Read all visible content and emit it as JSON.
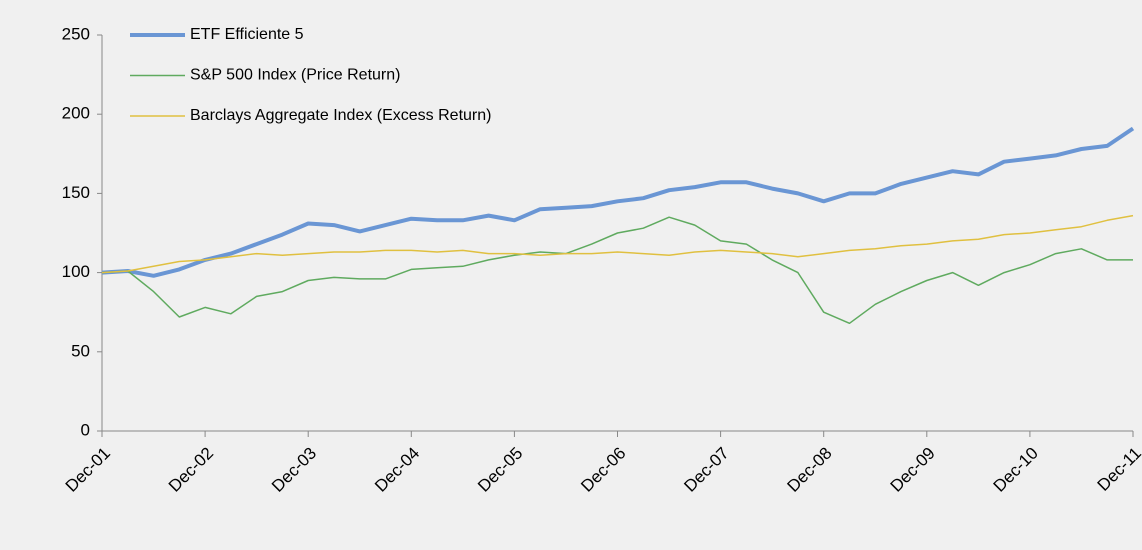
{
  "chart_data": {
    "type": "line",
    "x": [
      "Dec-01",
      "Mar-02",
      "Jun-02",
      "Sep-02",
      "Dec-02",
      "Mar-03",
      "Jun-03",
      "Sep-03",
      "Dec-03",
      "Mar-04",
      "Jun-04",
      "Sep-04",
      "Dec-04",
      "Mar-05",
      "Jun-05",
      "Sep-05",
      "Dec-05",
      "Mar-06",
      "Jun-06",
      "Sep-06",
      "Dec-06",
      "Mar-07",
      "Jun-07",
      "Sep-07",
      "Dec-07",
      "Mar-08",
      "Jun-08",
      "Sep-08",
      "Dec-08",
      "Mar-09",
      "Jun-09",
      "Sep-09",
      "Dec-09",
      "Mar-10",
      "Jun-10",
      "Sep-10",
      "Dec-10",
      "Mar-11",
      "Jun-11",
      "Sep-11",
      "Dec-11"
    ],
    "xticks": [
      "Dec-01",
      "Dec-02",
      "Dec-03",
      "Dec-04",
      "Dec-05",
      "Dec-06",
      "Dec-07",
      "Dec-08",
      "Dec-09",
      "Dec-10",
      "Dec-11"
    ],
    "ylim": [
      0,
      250
    ],
    "yticks": [
      0,
      50,
      100,
      150,
      200,
      250
    ],
    "grid": false,
    "legend": "top-left",
    "series": [
      {
        "name": "ETF  Efficiente 5",
        "color": "#6a96d4",
        "width": 4,
        "values": [
          100,
          101,
          98,
          102,
          108,
          112,
          118,
          124,
          131,
          130,
          126,
          130,
          134,
          133,
          133,
          136,
          133,
          140,
          141,
          142,
          145,
          147,
          152,
          154,
          157,
          157,
          153,
          150,
          145,
          150,
          150,
          156,
          160,
          164,
          162,
          170,
          172,
          174,
          178,
          180,
          191
        ]
      },
      {
        "name": "S&P 500 Index (Price Return)",
        "color": "#5faa5f",
        "width": 1.5,
        "values": [
          100,
          101,
          88,
          72,
          78,
          74,
          85,
          88,
          95,
          97,
          96,
          96,
          102,
          103,
          104,
          108,
          111,
          113,
          112,
          118,
          125,
          128,
          135,
          130,
          120,
          118,
          108,
          100,
          75,
          68,
          80,
          88,
          95,
          100,
          92,
          100,
          105,
          112,
          115,
          108,
          108
        ]
      },
      {
        "name": "Barclays Aggregate Index (Excess Return)",
        "color": "#e0c040",
        "width": 1.5,
        "values": [
          100,
          101,
          104,
          107,
          108,
          110,
          112,
          111,
          112,
          113,
          113,
          114,
          114,
          113,
          114,
          112,
          112,
          111,
          112,
          112,
          113,
          112,
          111,
          113,
          114,
          113,
          112,
          110,
          112,
          114,
          115,
          117,
          118,
          120,
          121,
          124,
          125,
          127,
          129,
          133,
          136
        ]
      }
    ]
  }
}
